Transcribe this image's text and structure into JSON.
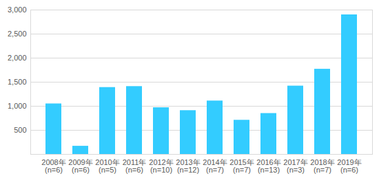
{
  "chart_data": {
    "type": "bar",
    "categories": [
      "2008年\n(n=6)",
      "2009年\n(n=6)",
      "2010年\n(n=5)",
      "2011年\n(n=6)",
      "2012年\n(n=10)",
      "2013年\n(n=12)",
      "2014年\n(n=7)",
      "2015年\n(n=7)",
      "2016年\n(n=13)",
      "2017年\n(n=3)",
      "2018年\n(n=7)",
      "2019年\n(n=6)"
    ],
    "values": [
      1050,
      170,
      1390,
      1410,
      970,
      910,
      1110,
      710,
      850,
      1420,
      1770,
      2900
    ],
    "color": "#33ccff",
    "ylim": [
      0,
      3000
    ],
    "yticks": [
      500,
      {
        "value": 1000,
        "label": "1,000"
      },
      {
        "value": 1500,
        "label": "1,500"
      },
      {
        "value": 2000,
        "label": "2,000"
      },
      {
        "value": 2500,
        "label": "2,500"
      },
      {
        "value": 3000,
        "label": "3,000"
      }
    ],
    "grid": true
  }
}
